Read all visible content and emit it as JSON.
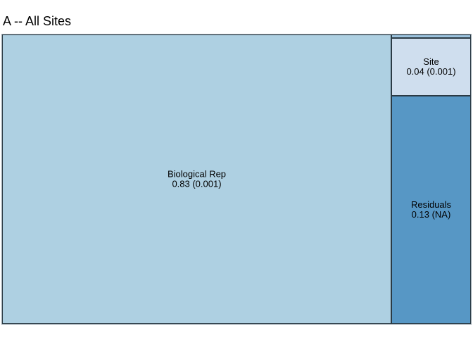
{
  "chart_data": {
    "type": "treemap",
    "title": "A -- All Sites",
    "items": [
      {
        "label": "Biological Rep",
        "value": 0.83,
        "detail": "0.83 (0.001)",
        "color": "#aed0e2"
      },
      {
        "label": "Site",
        "value": 0.04,
        "detail": "0.04 (0.001)",
        "color": "#cfdeee"
      },
      {
        "label": "Residuals",
        "value": 0.13,
        "detail": "0.13 (NA)",
        "color": "#5797c5"
      }
    ],
    "small_cell_color": "#9cc3de",
    "border_color": "#2b3a44"
  }
}
